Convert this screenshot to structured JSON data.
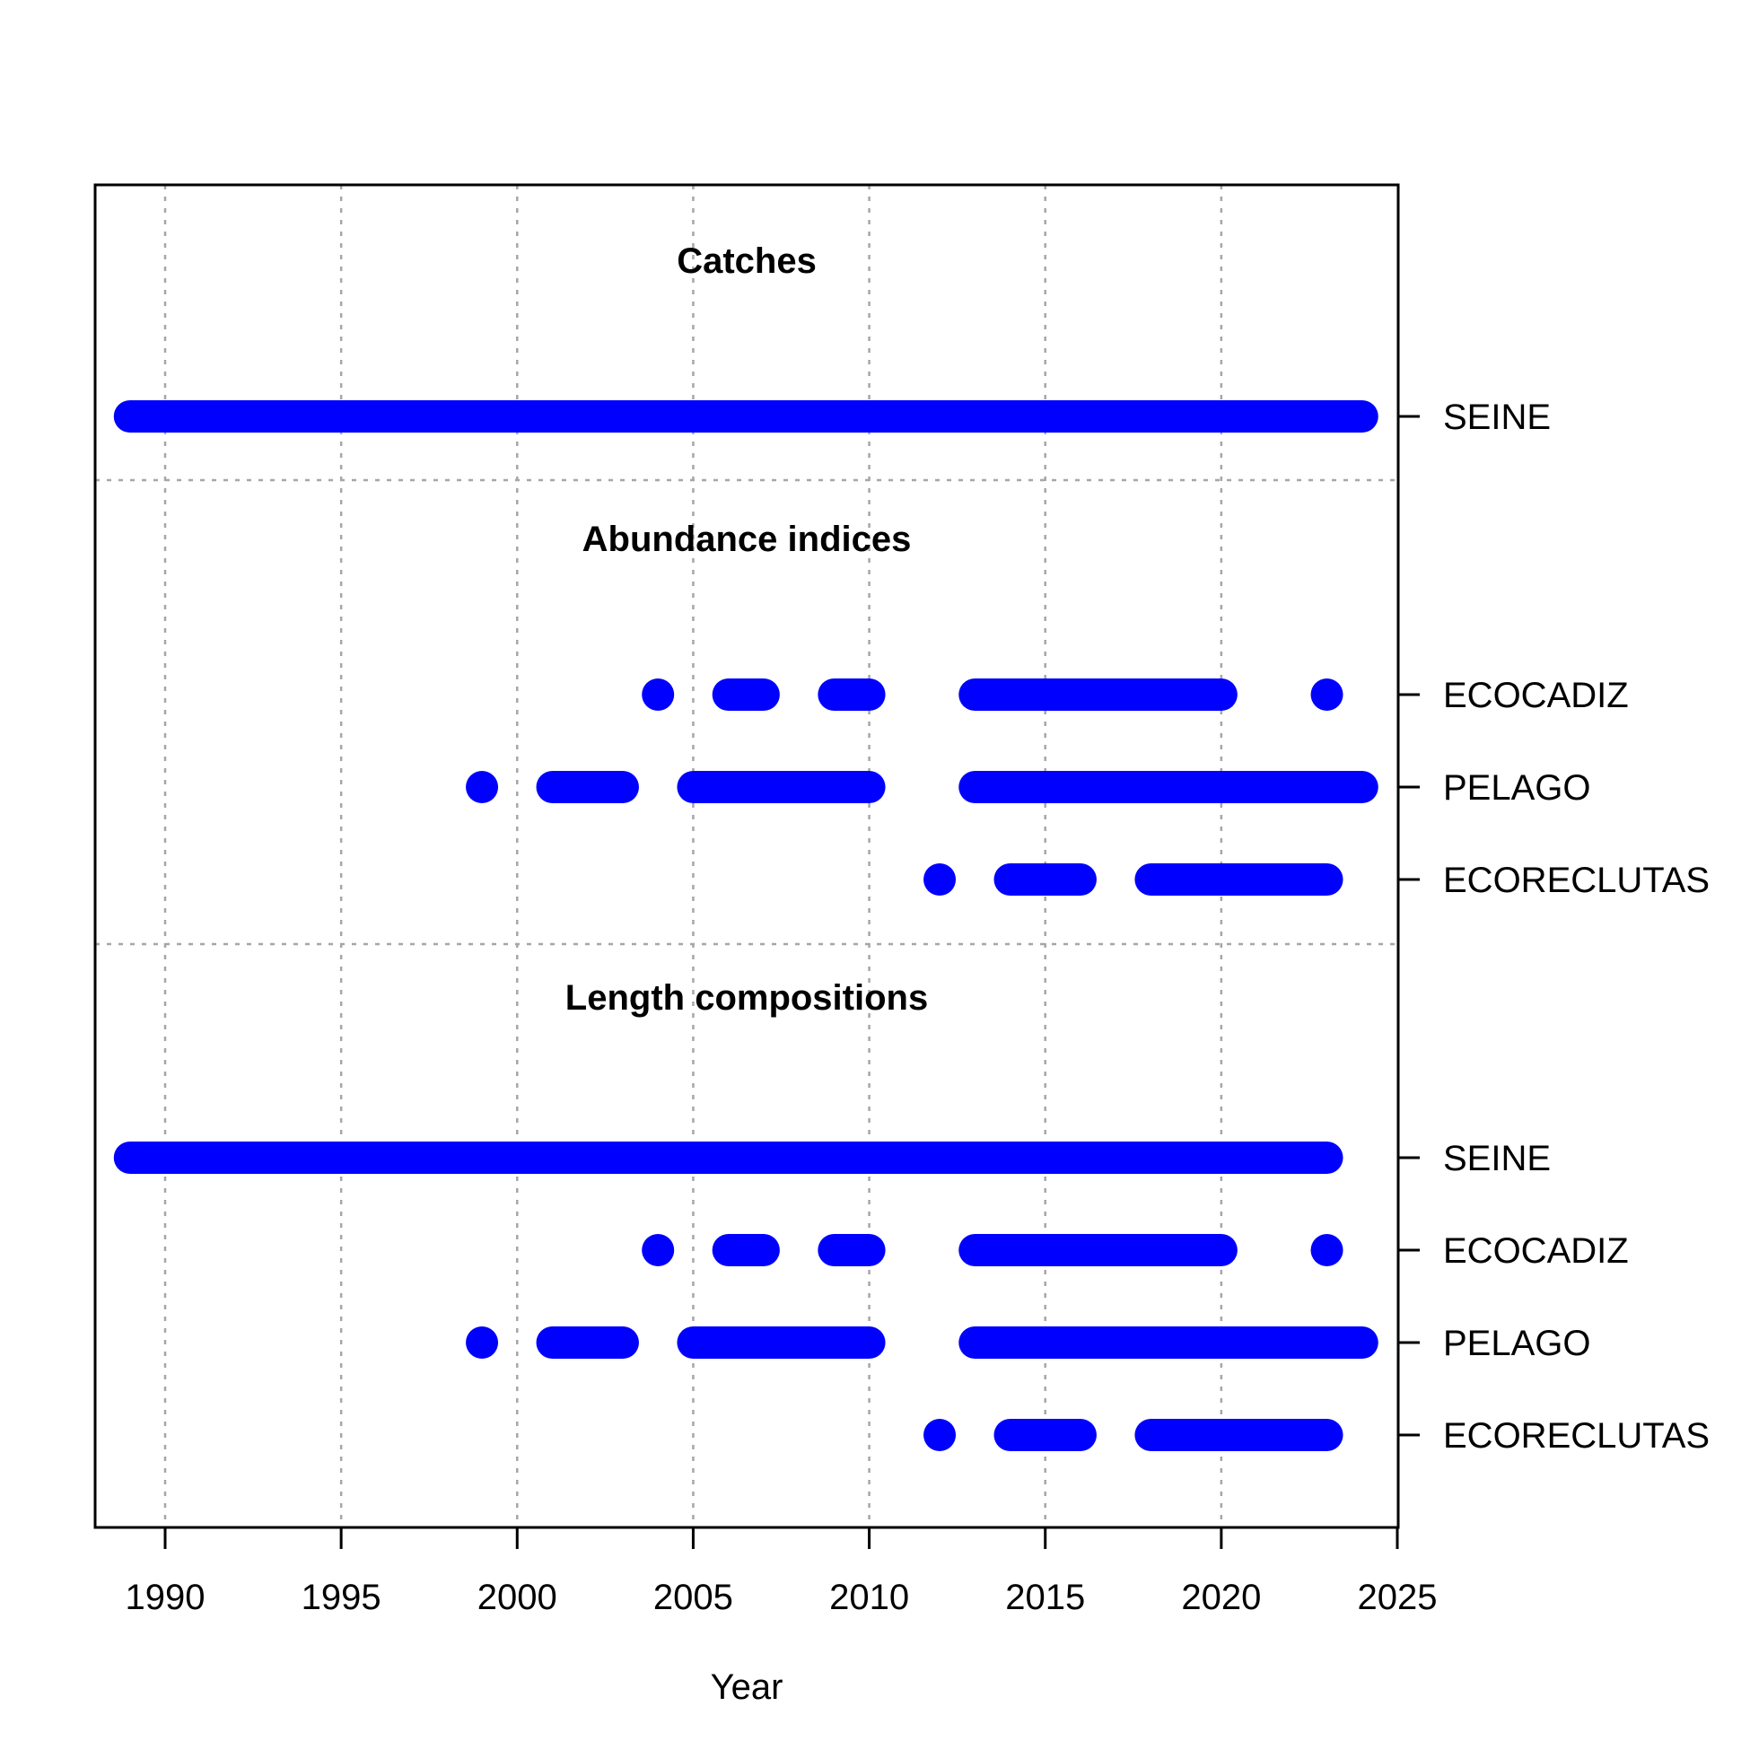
{
  "chart_data": {
    "type": "timeline",
    "xlabel": "Year",
    "xlim": [
      1988,
      2025
    ],
    "xticks": [
      1990,
      1995,
      2000,
      2005,
      2010,
      2015,
      2020,
      2025
    ],
    "grid": true,
    "color": "#0000ff",
    "sections": [
      {
        "title": "Catches",
        "rows": [
          {
            "label": "SEINE",
            "segments": [
              [
                1989,
                2024
              ]
            ]
          }
        ]
      },
      {
        "title": "Abundance indices",
        "rows": [
          {
            "label": "ECOCADIZ",
            "segments": [
              [
                2004,
                2004
              ],
              [
                2006,
                2007
              ],
              [
                2009,
                2010
              ],
              [
                2013,
                2020
              ],
              [
                2023,
                2023
              ]
            ]
          },
          {
            "label": "PELAGO",
            "segments": [
              [
                1999,
                1999
              ],
              [
                2001,
                2003
              ],
              [
                2005,
                2010
              ],
              [
                2013,
                2024
              ]
            ]
          },
          {
            "label": "ECORECLUTAS",
            "segments": [
              [
                2012,
                2012
              ],
              [
                2014,
                2016
              ],
              [
                2018,
                2023
              ]
            ]
          }
        ]
      },
      {
        "title": "Length compositions",
        "rows": [
          {
            "label": "SEINE",
            "segments": [
              [
                1989,
                2023
              ]
            ]
          },
          {
            "label": "ECOCADIZ",
            "segments": [
              [
                2004,
                2004
              ],
              [
                2006,
                2007
              ],
              [
                2009,
                2010
              ],
              [
                2013,
                2020
              ],
              [
                2023,
                2023
              ]
            ]
          },
          {
            "label": "PELAGO",
            "segments": [
              [
                1999,
                1999
              ],
              [
                2001,
                2003
              ],
              [
                2005,
                2010
              ],
              [
                2013,
                2024
              ]
            ]
          },
          {
            "label": "ECORECLUTAS",
            "segments": [
              [
                2012,
                2012
              ],
              [
                2014,
                2016
              ],
              [
                2018,
                2023
              ]
            ]
          }
        ]
      }
    ]
  }
}
